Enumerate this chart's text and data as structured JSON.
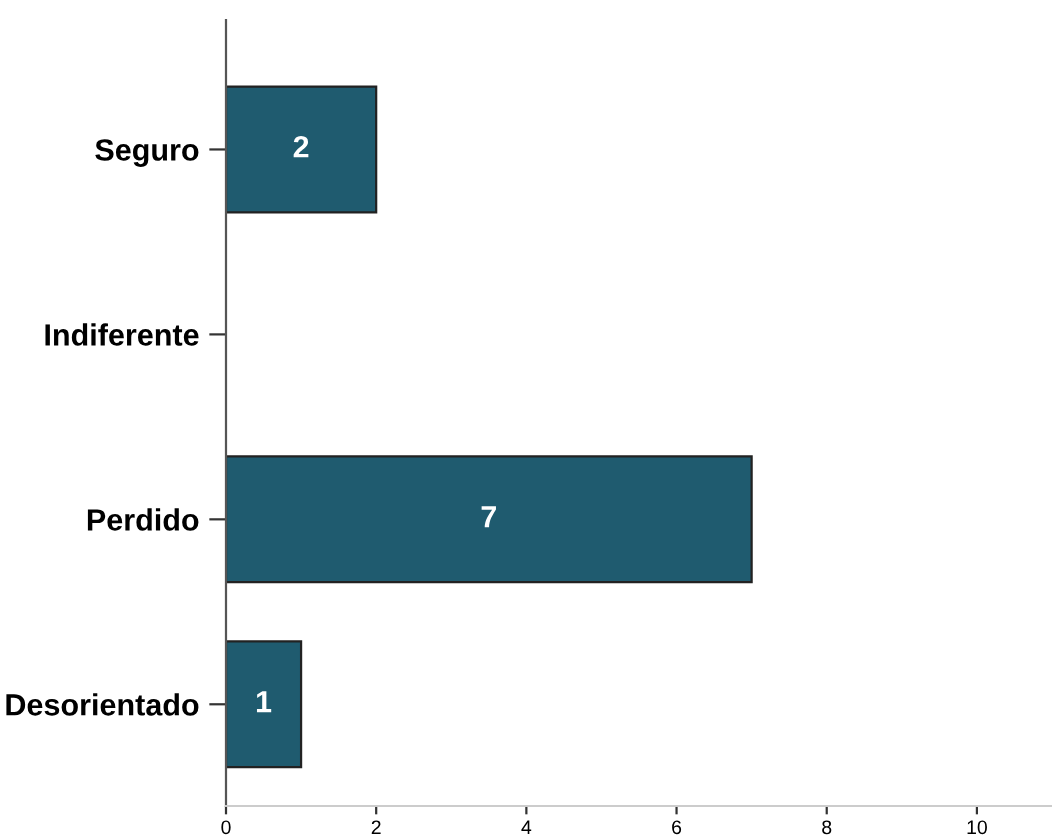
{
  "chart_data": {
    "type": "bar",
    "orientation": "horizontal",
    "categories": [
      "Seguro",
      "Indiferente",
      "Perdido",
      "Desorientado"
    ],
    "values": [
      2,
      0,
      7,
      1
    ],
    "value_labels": [
      "2",
      null,
      "7",
      "1"
    ],
    "color": "#1f5b6f",
    "xlim": [
      0,
      11
    ],
    "xticks": [
      0,
      2,
      4,
      6,
      8,
      10
    ],
    "grid": false,
    "legend": false
  }
}
